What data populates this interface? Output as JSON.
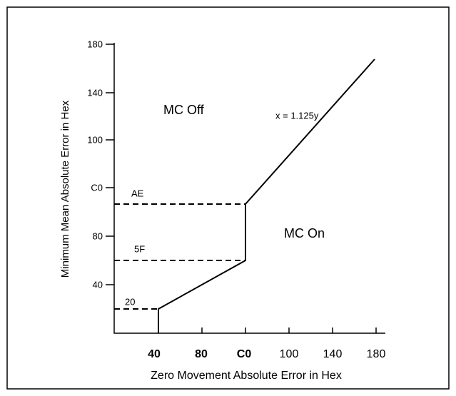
{
  "figure": {
    "x_axis": {
      "title": "Zero Movement Absolute Error in Hex",
      "ticks": [
        "40",
        "80",
        "C0",
        "100",
        "140",
        "180"
      ]
    },
    "y_axis": {
      "title": "Minimum Mean Absolute Error in Hex",
      "ticks": [
        "180",
        "140",
        "100",
        "C0",
        "80",
        "40"
      ]
    },
    "annotations": {
      "equation": "x = 1.125y",
      "off": "MC Off",
      "on": "MC On",
      "level_ae": "AE",
      "level_5f": "5F",
      "level_20": "20"
    }
  }
}
